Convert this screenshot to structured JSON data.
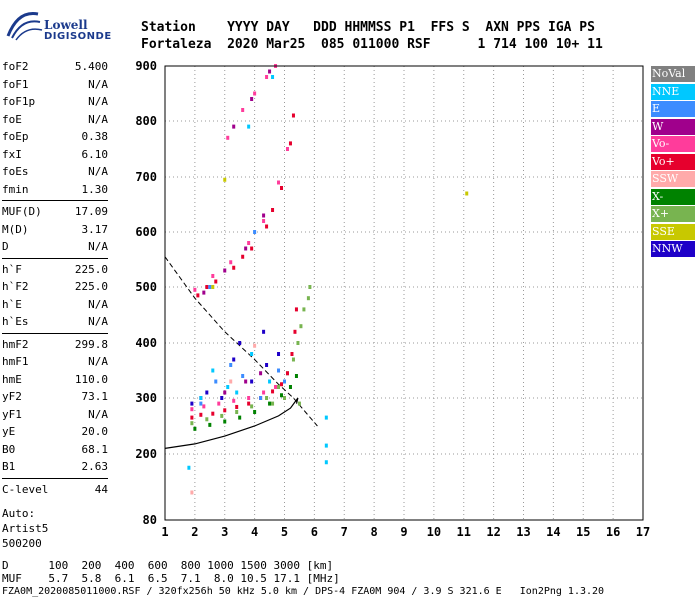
{
  "logo": {
    "line1": "Lowell",
    "line2": "DIGISONDE"
  },
  "header": {
    "line1": "Station    YYYY DAY   DDD HHMMSS P1  FFS S  AXN PPS IGA PS",
    "line2": "Fortaleza  2020 Mar25  085 011000 RSF      1 714 100 10+ 11"
  },
  "params": [
    {
      "name": "foF2",
      "value": "5.400"
    },
    {
      "name": "foF1",
      "value": "N/A"
    },
    {
      "name": "foF1p",
      "value": "N/A"
    },
    {
      "name": "foE",
      "value": "N/A"
    },
    {
      "name": "foEp",
      "value": "0.38"
    },
    {
      "name": "fxI",
      "value": "6.10"
    },
    {
      "name": "foEs",
      "value": "N/A"
    },
    {
      "name": "fmin",
      "value": "1.30"
    },
    {
      "name": "MUF(D)",
      "value": "17.09"
    },
    {
      "name": "M(D)",
      "value": "3.17"
    },
    {
      "name": "D",
      "value": "N/A"
    },
    {
      "name": "h`F",
      "value": "225.0"
    },
    {
      "name": "h`F2",
      "value": "225.0"
    },
    {
      "name": "h`E",
      "value": "N/A"
    },
    {
      "name": "h`Es",
      "value": "N/A"
    },
    {
      "name": "hmF2",
      "value": "299.8"
    },
    {
      "name": "hmF1",
      "value": "N/A"
    },
    {
      "name": "hmE",
      "value": "110.0"
    },
    {
      "name": "yF2",
      "value": "73.1"
    },
    {
      "name": "yF1",
      "value": "N/A"
    },
    {
      "name": "yE",
      "value": "20.0"
    },
    {
      "name": "B0",
      "value": "68.1"
    },
    {
      "name": "B1",
      "value": "2.63"
    },
    {
      "name": "C-level",
      "value": "44"
    }
  ],
  "autoscaling": {
    "line1": "Auto:",
    "line2": "Artist5",
    "line3": "500200"
  },
  "legend": [
    {
      "label": "NoVal",
      "color": "#808080"
    },
    {
      "label": "NNE",
      "color": "#00c8ff"
    },
    {
      "label": "E",
      "color": "#3c8cff"
    },
    {
      "label": "W",
      "color": "#a0008c"
    },
    {
      "label": "Vo-",
      "color": "#ff3c9b"
    },
    {
      "label": "Vo+",
      "color": "#e6002d"
    },
    {
      "label": "SSW",
      "color": "#ffaaaa"
    },
    {
      "label": "X-",
      "color": "#008200"
    },
    {
      "label": "X+",
      "color": "#78b450"
    },
    {
      "label": "SSE",
      "color": "#c8c800"
    },
    {
      "label": "NNW",
      "color": "#1e00c8"
    }
  ],
  "footer": {
    "d_line": "D      100  200  400  600  800 1000 1500 3000 [km]",
    "muf_line": "MUF    5.7  5.8  6.1  6.5  7.1  8.0 10.5 17.1 [MHz]",
    "file_line": "FZA0M_2020085011000.RSF / 320fx256h 50 kHz 5.0 km / DPS-4 FZA0M 904 / 3.9 S 321.6 E   Ion2Png 1.3.20"
  },
  "chart_data": {
    "type": "scatter",
    "xlim": [
      1,
      17
    ],
    "ylim": [
      80,
      900
    ],
    "xticks": [
      1,
      2,
      3,
      4,
      5,
      6,
      7,
      8,
      9,
      10,
      11,
      12,
      13,
      14,
      15,
      16,
      17
    ],
    "yticks": [
      80,
      200,
      300,
      400,
      500,
      600,
      700,
      800,
      900
    ],
    "grid": true,
    "legend_position": "right",
    "series": [
      {
        "name": "X+",
        "color": "#78b450",
        "points": [
          [
            1.9,
            255
          ],
          [
            2.4,
            262
          ],
          [
            2.9,
            268
          ],
          [
            3.4,
            275
          ],
          [
            3.9,
            285
          ],
          [
            4.4,
            300
          ],
          [
            4.8,
            320
          ],
          [
            5.1,
            345
          ],
          [
            5.3,
            370
          ],
          [
            5.45,
            400
          ],
          [
            5.55,
            430
          ],
          [
            5.65,
            460
          ],
          [
            5.8,
            480
          ],
          [
            5.85,
            500
          ],
          [
            5.5,
            290
          ],
          [
            5.0,
            300
          ],
          [
            4.6,
            290
          ]
        ]
      },
      {
        "name": "X-",
        "color": "#008200",
        "points": [
          [
            2.0,
            245
          ],
          [
            2.5,
            252
          ],
          [
            3.0,
            258
          ],
          [
            3.5,
            265
          ],
          [
            4.0,
            275
          ],
          [
            4.5,
            290
          ],
          [
            4.9,
            305
          ],
          [
            5.2,
            320
          ],
          [
            5.4,
            340
          ]
        ]
      },
      {
        "name": "Vo+",
        "color": "#e6002d",
        "points": [
          [
            1.9,
            265
          ],
          [
            2.2,
            270
          ],
          [
            2.6,
            272
          ],
          [
            3.0,
            278
          ],
          [
            3.4,
            284
          ],
          [
            3.8,
            290
          ],
          [
            4.2,
            300
          ],
          [
            4.6,
            312
          ],
          [
            4.9,
            325
          ],
          [
            5.1,
            345
          ],
          [
            5.25,
            380
          ],
          [
            5.35,
            420
          ],
          [
            5.4,
            460
          ],
          [
            2.1,
            485
          ],
          [
            2.7,
            510
          ],
          [
            3.3,
            535
          ],
          [
            3.9,
            570
          ],
          [
            4.4,
            610
          ],
          [
            4.9,
            680
          ],
          [
            5.2,
            760
          ],
          [
            5.3,
            810
          ],
          [
            2.4,
            500
          ],
          [
            3.6,
            555
          ],
          [
            4.6,
            640
          ]
        ]
      },
      {
        "name": "Vo-",
        "color": "#ff3c9b",
        "points": [
          [
            1.9,
            280
          ],
          [
            2.3,
            285
          ],
          [
            2.8,
            290
          ],
          [
            3.3,
            295
          ],
          [
            3.8,
            300
          ],
          [
            4.3,
            310
          ],
          [
            4.7,
            320
          ],
          [
            2.0,
            495
          ],
          [
            2.6,
            520
          ],
          [
            3.2,
            545
          ],
          [
            3.8,
            580
          ],
          [
            4.3,
            620
          ],
          [
            4.8,
            690
          ],
          [
            5.1,
            750
          ],
          [
            3.1,
            770
          ],
          [
            3.6,
            820
          ],
          [
            4.0,
            850
          ],
          [
            4.4,
            880
          ],
          [
            4.7,
            900
          ]
        ]
      },
      {
        "name": "W",
        "color": "#a0008c",
        "points": [
          [
            2.2,
            300
          ],
          [
            3.0,
            310
          ],
          [
            3.7,
            330
          ],
          [
            4.2,
            345
          ],
          [
            2.3,
            490
          ],
          [
            3.0,
            530
          ],
          [
            3.7,
            570
          ],
          [
            4.3,
            630
          ],
          [
            3.3,
            790
          ],
          [
            3.9,
            840
          ],
          [
            4.5,
            890
          ]
        ]
      },
      {
        "name": "E",
        "color": "#3c8cff",
        "points": [
          [
            2.2,
            290
          ],
          [
            2.7,
            330
          ],
          [
            3.2,
            360
          ],
          [
            3.6,
            340
          ],
          [
            4.2,
            300
          ],
          [
            4.8,
            350
          ],
          [
            5.0,
            330
          ],
          [
            2.5,
            500
          ],
          [
            4.0,
            600
          ]
        ]
      },
      {
        "name": "NNE",
        "color": "#00c8ff",
        "points": [
          [
            1.8,
            175
          ],
          [
            2.2,
            300
          ],
          [
            2.6,
            350
          ],
          [
            3.1,
            320
          ],
          [
            3.4,
            310
          ],
          [
            3.9,
            380
          ],
          [
            4.5,
            330
          ],
          [
            6.4,
            265
          ],
          [
            6.4,
            215
          ],
          [
            6.4,
            185
          ],
          [
            3.8,
            790
          ],
          [
            4.6,
            880
          ]
        ]
      },
      {
        "name": "NNW",
        "color": "#1e00c8",
        "points": [
          [
            1.9,
            290
          ],
          [
            2.4,
            310
          ],
          [
            2.9,
            300
          ],
          [
            3.3,
            370
          ],
          [
            3.5,
            400
          ],
          [
            3.9,
            330
          ],
          [
            4.4,
            360
          ],
          [
            4.8,
            380
          ],
          [
            4.3,
            420
          ]
        ]
      },
      {
        "name": "SSE",
        "color": "#c8c800",
        "points": [
          [
            3.0,
            695
          ],
          [
            11.1,
            670
          ],
          [
            2.6,
            500
          ]
        ]
      },
      {
        "name": "SSW",
        "color": "#ffaaaa",
        "points": [
          [
            1.9,
            130
          ],
          [
            3.2,
            330
          ],
          [
            4.0,
            395
          ]
        ]
      }
    ],
    "profile_curve": [
      [
        1.0,
        210
      ],
      [
        2.0,
        218
      ],
      [
        3.0,
        232
      ],
      [
        4.0,
        250
      ],
      [
        4.8,
        268
      ],
      [
        5.2,
        282
      ],
      [
        5.45,
        300
      ],
      [
        5.4,
        290
      ]
    ],
    "muf_curve": [
      [
        1.0,
        555
      ],
      [
        2.0,
        480
      ],
      [
        3.0,
        420
      ],
      [
        4.0,
        370
      ],
      [
        4.8,
        325
      ],
      [
        5.3,
        300
      ],
      [
        5.7,
        275
      ],
      [
        6.1,
        250
      ]
    ]
  }
}
